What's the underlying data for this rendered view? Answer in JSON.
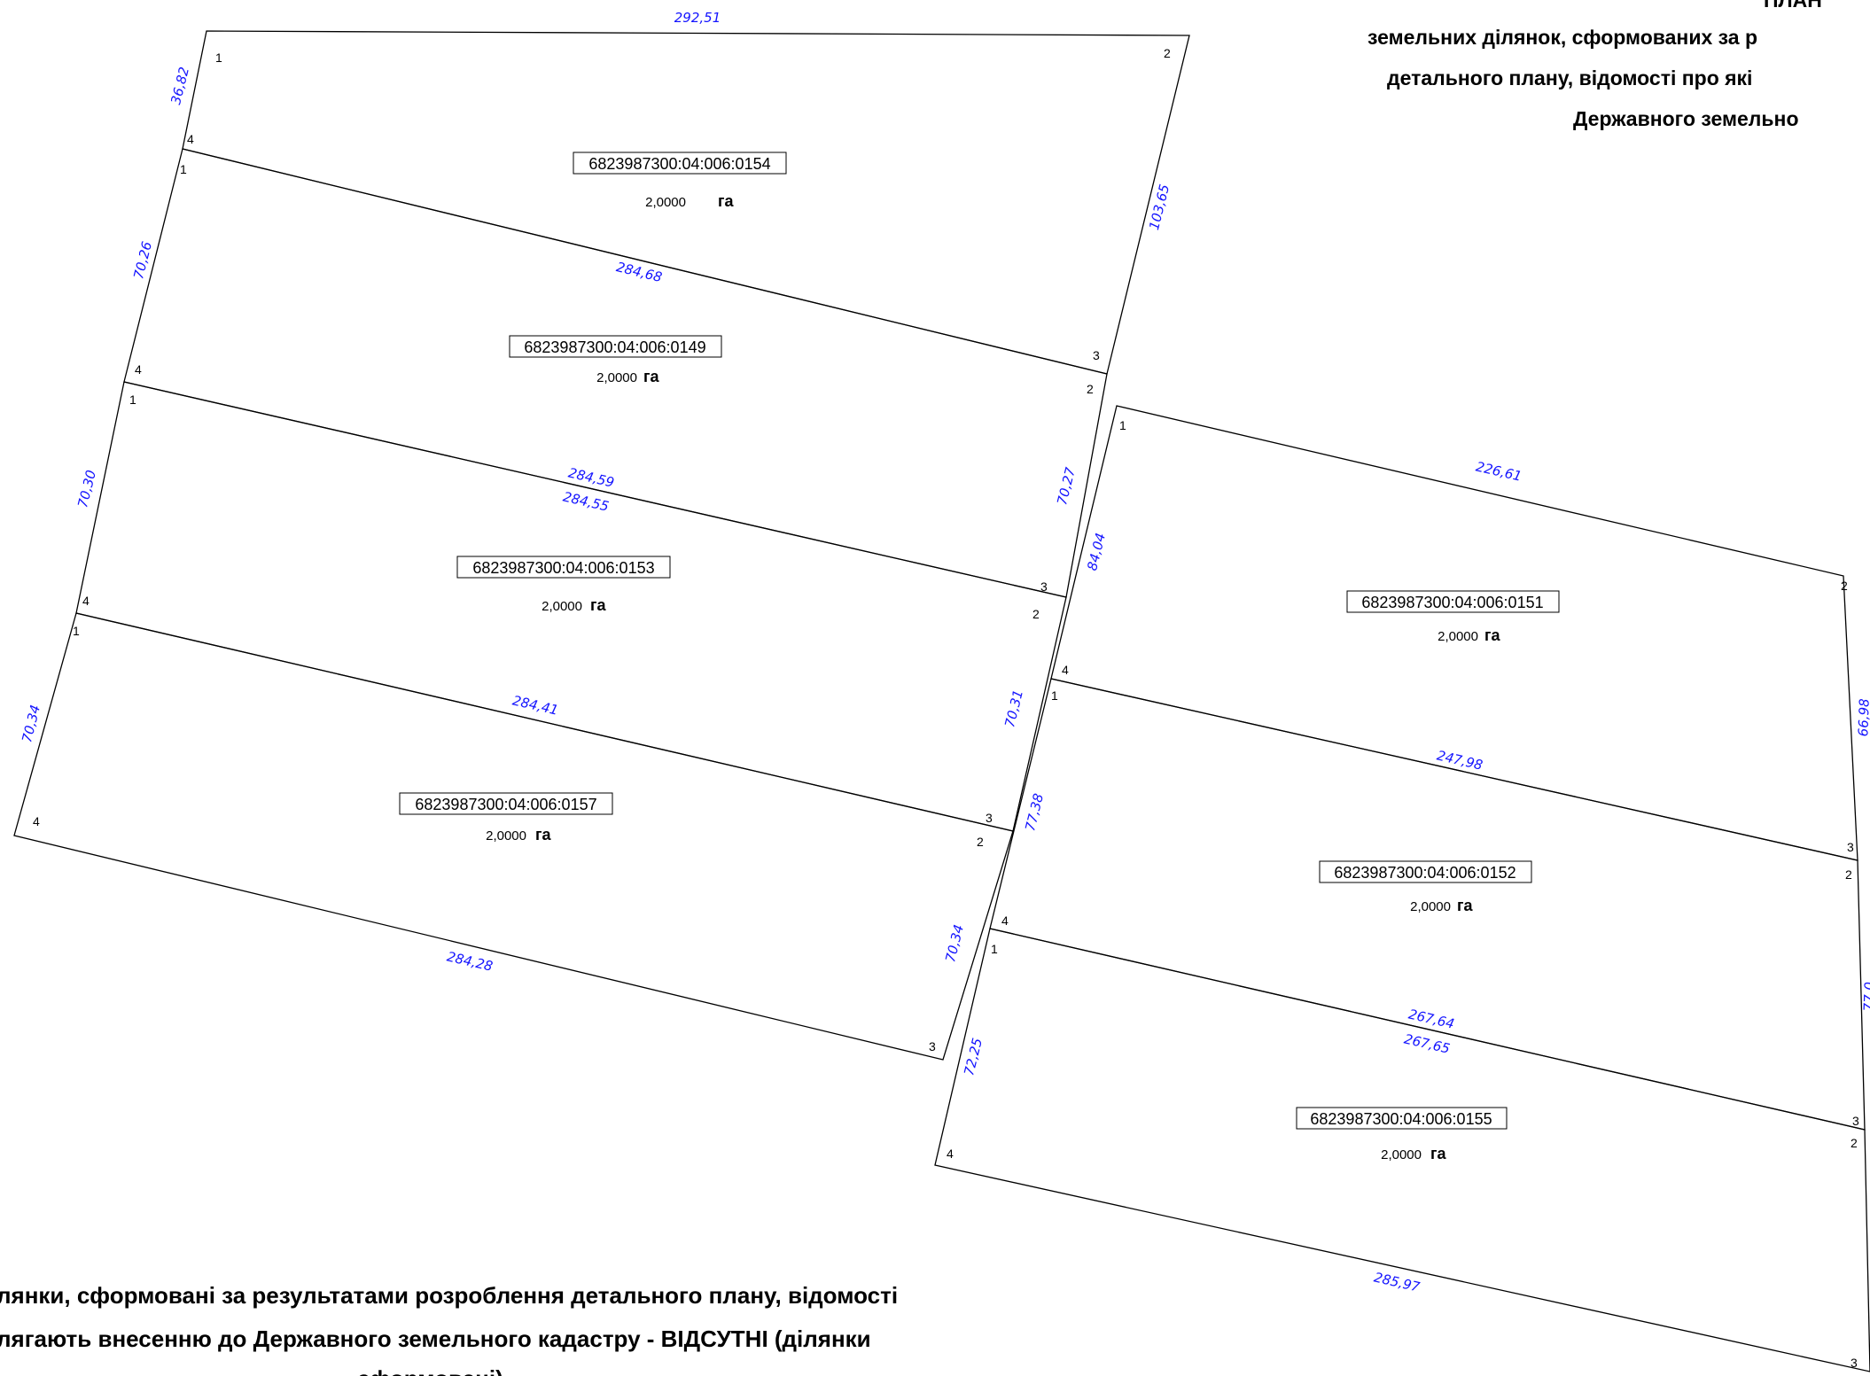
{
  "header": {
    "title_lines": [
      "ПЛАН",
      "земельних ділянок, сформованих за р",
      "детального плану, відомості про які",
      "Державного земельно"
    ]
  },
  "note": {
    "lines": [
      "лянки, сформовані за результатами розроблення детального плану, відомості",
      "лягають внесенню до Державного земельного кадастру - ВІДСУТНІ (ділянки",
      "сформовані)"
    ]
  },
  "unit_label": "га",
  "parcels": [
    {
      "id": "p0154",
      "cadastral_number": "6823987300:04:006:0154",
      "area": "2,0000",
      "vertex_labels": [
        "1",
        "2",
        "3",
        "4"
      ]
    },
    {
      "id": "p0149",
      "cadastral_number": "6823987300:04:006:0149",
      "area": "2,0000",
      "vertex_labels": [
        "1",
        "2",
        "3",
        "4"
      ]
    },
    {
      "id": "p0153",
      "cadastral_number": "6823987300:04:006:0153",
      "area": "2,0000",
      "vertex_labels": [
        "1",
        "2",
        "3",
        "4"
      ]
    },
    {
      "id": "p0157",
      "cadastral_number": "6823987300:04:006:0157",
      "area": "2,0000",
      "vertex_labels": [
        "1",
        "2",
        "3",
        "4"
      ]
    },
    {
      "id": "p0151",
      "cadastral_number": "6823987300:04:006:0151",
      "area": "2,0000",
      "vertex_labels": [
        "1",
        "2",
        "3",
        "4"
      ]
    },
    {
      "id": "p0152",
      "cadastral_number": "6823987300:04:006:0152",
      "area": "2,0000",
      "vertex_labels": [
        "1",
        "2",
        "3",
        "4"
      ]
    },
    {
      "id": "p0155",
      "cadastral_number": "6823987300:04:006:0155",
      "area": "2,0000",
      "vertex_labels": [
        "1",
        "2",
        "3",
        "4"
      ]
    }
  ],
  "side_lengths": {
    "a": "292,51",
    "b": "36,82",
    "c": "103,65",
    "d": "284,68",
    "e": "70,26",
    "f": "70,27",
    "g": "284,59",
    "h": "284,55",
    "i": "70,30",
    "j": "70,31",
    "k": "284,41",
    "l": "70,34",
    "m": "284,28",
    "n": "70,34",
    "o": "226,61",
    "p": "84,04",
    "q": "247,98",
    "r": "77,38",
    "s": "267,64",
    "t": "267,65",
    "u": "72,25",
    "v": "285,97",
    "w": "66,98",
    "x": "77,0"
  }
}
